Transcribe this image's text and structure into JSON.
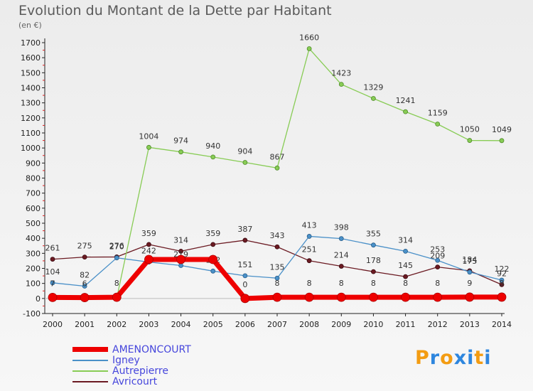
{
  "header": {
    "title": "Evolution du Montant de la Dette par Habitant",
    "subtitle": "(en €)"
  },
  "logo": {
    "letters": [
      "P",
      "r",
      "o",
      "x",
      "i",
      "t",
      "i"
    ],
    "colors": [
      "#f39c12",
      "#2e86de",
      "#f39c12",
      "#2e86de",
      "#2e86de",
      "#f39c12",
      "#2e86de"
    ]
  },
  "chart_data": {
    "type": "line",
    "x": [
      "2000",
      "2001",
      "2002",
      "2003",
      "2004",
      "2005",
      "2006",
      "2007",
      "2008",
      "2009",
      "2010",
      "2011",
      "2012",
      "2013",
      "2014"
    ],
    "ylim": [
      -100,
      1700
    ],
    "yticks": [
      -100,
      0,
      100,
      200,
      300,
      400,
      500,
      600,
      700,
      800,
      900,
      1000,
      1100,
      1200,
      1300,
      1400,
      1500,
      1600,
      1700
    ],
    "grid": false,
    "legend_position": "bottom-left",
    "series": [
      {
        "name": "Avricourt",
        "color": "#6b1a22",
        "values": [
          261,
          275,
          276,
          359,
          314,
          359,
          387,
          343,
          251,
          214,
          178,
          145,
          209,
          184,
          92
        ],
        "labels": [
          "261",
          "275",
          "276",
          "359",
          "314",
          "359",
          "387",
          "343",
          "251",
          "214",
          "178",
          "145",
          "209",
          "184",
          "92"
        ]
      },
      {
        "name": "Igney",
        "color": "#4a90c8",
        "values": [
          104,
          82,
          270,
          242,
          219,
          182,
          151,
          135,
          413,
          398,
          355,
          314,
          253,
          175,
          122
        ],
        "labels": [
          "104",
          "82",
          "270",
          "242",
          "219",
          "182",
          "151",
          "135",
          "413",
          "398",
          "355",
          "314",
          "253",
          "175",
          "122"
        ]
      },
      {
        "name": "Autrepierre",
        "color": "#88cc55",
        "values": [
          12,
          3,
          3,
          1004,
          974,
          940,
          904,
          867,
          1660,
          1423,
          1329,
          1241,
          1159,
          1050,
          1049
        ],
        "labels": [
          "",
          "",
          "",
          "1004",
          "974",
          "940",
          "904",
          "867",
          "1660",
          "1423",
          "1329",
          "1241",
          "1159",
          "1050",
          "1049"
        ]
      },
      {
        "name": "AMENONCOURT",
        "color": "#ee0000",
        "values": [
          7,
          6,
          8,
          259,
          259,
          259,
          0,
          8,
          8,
          8,
          8,
          8,
          8,
          9,
          9
        ],
        "labels": [
          "7",
          "6",
          "8",
          "",
          "",
          "",
          "0",
          "8",
          "8",
          "8",
          "8",
          "8",
          "8",
          "9",
          "9"
        ]
      }
    ],
    "legend": [
      "AMENONCOURT",
      "Igney",
      "Autrepierre",
      "Avricourt"
    ]
  }
}
